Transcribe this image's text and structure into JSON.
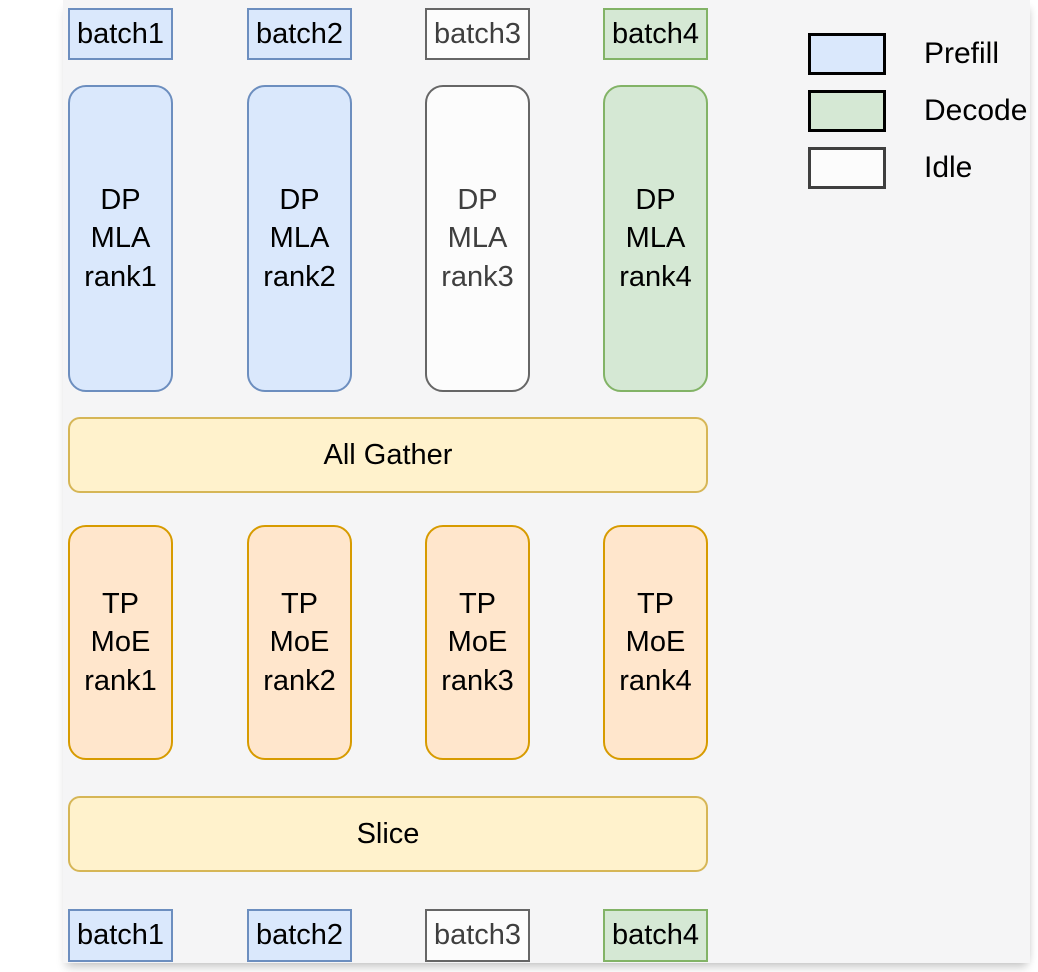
{
  "colors": {
    "panel_bg": "#f5f5f6",
    "prefill_fill": "#dae8fc",
    "prefill_border": "#6c8ebf",
    "decode_fill": "#d5e8d4",
    "decode_border": "#82b366",
    "idle_fill": "#fcfcfc",
    "idle_border": "#666666",
    "op_fill": "#fff2cc",
    "op_border": "#d6b656",
    "moe_fill": "#ffe6cc",
    "moe_border": "#d79b00"
  },
  "legend": {
    "items": [
      {
        "label": "Prefill",
        "type": "prefill"
      },
      {
        "label": "Decode",
        "type": "decode"
      },
      {
        "label": "Idle",
        "type": "idle"
      }
    ]
  },
  "top_batches": [
    {
      "label": "batch1",
      "type": "prefill"
    },
    {
      "label": "batch2",
      "type": "prefill"
    },
    {
      "label": "batch3",
      "type": "idle"
    },
    {
      "label": "batch4",
      "type": "decode"
    }
  ],
  "dp_ranks": [
    {
      "lines": [
        "DP",
        "MLA",
        "rank1"
      ],
      "type": "prefill"
    },
    {
      "lines": [
        "DP",
        "MLA",
        "rank2"
      ],
      "type": "prefill"
    },
    {
      "lines": [
        "DP",
        "MLA",
        "rank3"
      ],
      "type": "idle"
    },
    {
      "lines": [
        "DP",
        "MLA",
        "rank4"
      ],
      "type": "decode"
    }
  ],
  "ops": {
    "all_gather": "All Gather",
    "slice": "Slice"
  },
  "tp_ranks": [
    {
      "lines": [
        "TP",
        "MoE",
        "rank1"
      ],
      "type": "moe"
    },
    {
      "lines": [
        "TP",
        "MoE",
        "rank2"
      ],
      "type": "moe"
    },
    {
      "lines": [
        "TP",
        "MoE",
        "rank3"
      ],
      "type": "moe"
    },
    {
      "lines": [
        "TP",
        "MoE",
        "rank4"
      ],
      "type": "moe"
    }
  ],
  "bottom_batches": [
    {
      "label": "batch1",
      "type": "prefill"
    },
    {
      "label": "batch2",
      "type": "prefill"
    },
    {
      "label": "batch3",
      "type": "idle"
    },
    {
      "label": "batch4",
      "type": "decode"
    }
  ]
}
